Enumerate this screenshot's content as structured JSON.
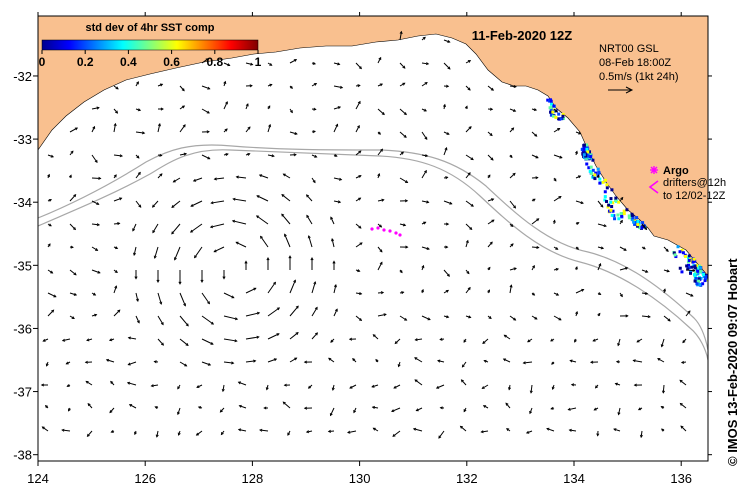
{
  "map": {
    "date_title": "11-Feb-2020 12Z",
    "credit": "© IMOS 13-Feb-2020 09:07 Hobart",
    "land_color": "#f9c08f",
    "ocean_color": "#ffffff",
    "contour_color": "#a8a8a8",
    "arrow_color": "#000000",
    "argo_color": "#ff00ff"
  },
  "colorbar": {
    "title": "std dev of 4hr SST comp",
    "ticks": [
      "0",
      "0.2",
      "0.4",
      "0.6",
      "0.8",
      "1"
    ],
    "colormap": "jet",
    "range": [
      0,
      1
    ]
  },
  "velocity_info": {
    "line1": "NRT00 GSL",
    "line2": "08-Feb 18:00Z",
    "line3": "0.5m/s (1kt 24h)",
    "scale_arrow_icon": "arrow-right-icon"
  },
  "legend": {
    "argo_label": "Argo",
    "drifters_line1": "drifters@12h",
    "drifters_line2": "to 12/02-12Z",
    "argo_icon": "asterisk-icon",
    "drifter_icon": "chevron-left-icon"
  },
  "axes": {
    "x_ticks": [
      "124",
      "126",
      "128",
      "130",
      "132",
      "134",
      "136"
    ],
    "y_ticks": [
      "-32",
      "-33",
      "-34",
      "-35",
      "-36",
      "-37",
      "-38"
    ],
    "lon_range": [
      124,
      136.5
    ],
    "lat_range": [
      -38.1,
      -31.05
    ]
  }
}
